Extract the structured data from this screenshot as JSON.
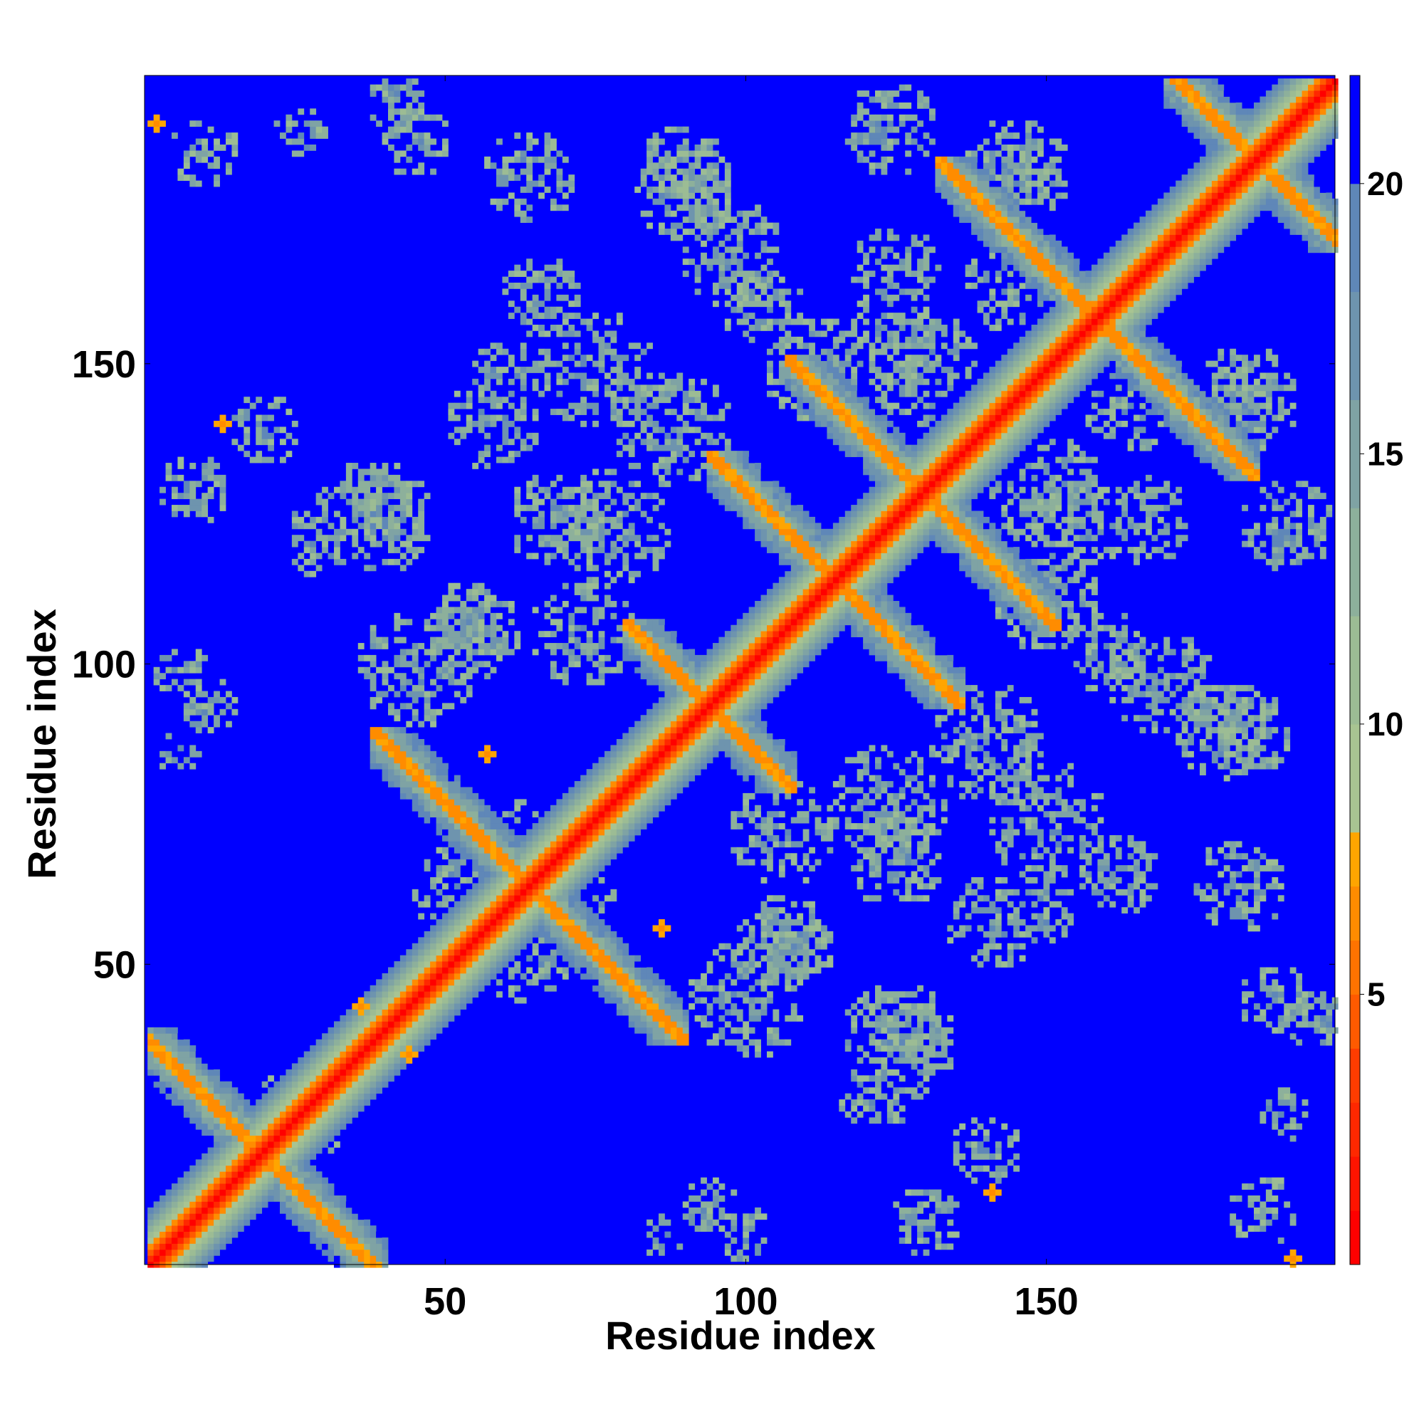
{
  "chart_data": {
    "type": "heatmap",
    "title": "",
    "xlabel": "Residue index",
    "ylabel": "Residue index",
    "n_residues": 198,
    "xlim": [
      1,
      198
    ],
    "ylim": [
      1,
      198
    ],
    "x_ticks": [
      50,
      100,
      150
    ],
    "y_ticks": [
      50,
      100,
      150
    ],
    "colorbar": {
      "ticks": [
        5,
        10,
        15,
        20
      ],
      "range": [
        0,
        22
      ],
      "levels": [
        {
          "max": 1,
          "color": "#ff0000"
        },
        {
          "max": 2,
          "color": "#ff1400"
        },
        {
          "max": 3,
          "color": "#ff2800"
        },
        {
          "max": 4,
          "color": "#ff3c00"
        },
        {
          "max": 5,
          "color": "#ff5a00"
        },
        {
          "max": 6,
          "color": "#ff7300"
        },
        {
          "max": 7,
          "color": "#ff8c00"
        },
        {
          "max": 8,
          "color": "#ffa500"
        },
        {
          "max": 10,
          "color": "#a8c492"
        },
        {
          "max": 12,
          "color": "#9cbc94"
        },
        {
          "max": 14,
          "color": "#8db09b"
        },
        {
          "max": 16,
          "color": "#7fa3a4"
        },
        {
          "max": 18,
          "color": "#6e94ae"
        },
        {
          "max": 20,
          "color": "#5f87b8"
        },
        {
          "max": 22,
          "color": "#0000ff"
        }
      ]
    },
    "background_value": 22,
    "features": {
      "diagonal_band": {
        "description": "distance vs |i-j|",
        "values_by_offset": [
          1,
          3,
          5,
          6.5,
          8.5,
          11,
          13,
          15,
          17,
          19
        ]
      },
      "antiparallel_contacts": [
        {
          "center": [
            18,
            18
          ],
          "anti": true,
          "from": [
            1,
            38
          ],
          "to": [
            38,
            1
          ]
        },
        {
          "center": [
            88,
            88
          ],
          "anti": true,
          "from": [
            82,
            106
          ],
          "to": [
            106,
            82
          ]
        },
        {
          "center": [
            113,
            113
          ],
          "anti": true,
          "from": [
            96,
            134
          ],
          "to": [
            134,
            96
          ]
        },
        {
          "center": [
            128,
            128
          ],
          "anti": true,
          "from": [
            109,
            150
          ],
          "to": [
            150,
            109
          ]
        },
        {
          "center": [
            146,
            146
          ],
          "anti": true,
          "from": [
            134,
            183
          ],
          "to": [
            183,
            134
          ]
        },
        {
          "center": [
            186,
            186
          ],
          "anti": true,
          "from": [
            172,
            198
          ],
          "to": [
            198,
            172
          ]
        },
        {
          "center": [
            50,
            50
          ],
          "anti": true,
          "from": [
            40,
            88
          ],
          "to": [
            88,
            40
          ]
        }
      ],
      "isolated_close_contacts": [
        {
          "x": 2,
          "y": 191
        },
        {
          "x": 13,
          "y": 141
        },
        {
          "x": 191,
          "y": 2
        },
        {
          "x": 141,
          "y": 13
        },
        {
          "x": 57,
          "y": 86
        },
        {
          "x": 86,
          "y": 57
        },
        {
          "x": 36,
          "y": 44
        },
        {
          "x": 44,
          "y": 36
        }
      ]
    }
  }
}
